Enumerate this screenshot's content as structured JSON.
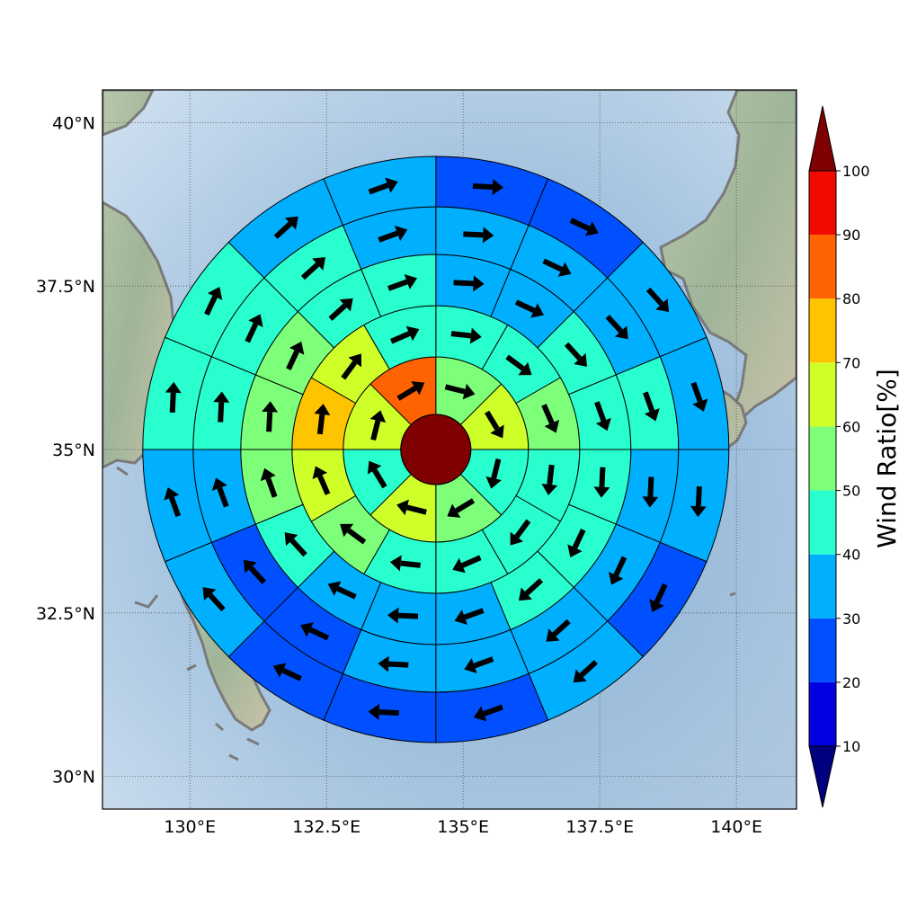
{
  "chart_data": {
    "type": "polar-grid-map",
    "x_axis": {
      "ticks": [
        {
          "lon": 130.0,
          "label": "130°E"
        },
        {
          "lon": 132.5,
          "label": "132.5°E"
        },
        {
          "lon": 135.0,
          "label": "135°E"
        },
        {
          "lon": 137.5,
          "label": "137.5°E"
        },
        {
          "lon": 140.0,
          "label": "140°E"
        }
      ],
      "range": [
        128.4,
        141.1
      ]
    },
    "y_axis": {
      "ticks": [
        {
          "lat": 30.0,
          "label": "30°N"
        },
        {
          "lat": 32.5,
          "label": "32.5°N"
        },
        {
          "lat": 35.0,
          "label": "35°N"
        },
        {
          "lat": 37.5,
          "label": "37.5°N"
        },
        {
          "lat": 40.0,
          "label": "40°N"
        }
      ],
      "range": [
        29.5,
        40.5
      ]
    },
    "grid": true,
    "center": {
      "lon": 134.5,
      "lat": 35.0,
      "value": 100
    },
    "rings": [
      {
        "sectors": 8,
        "values": [
          55,
          65,
          45,
          55,
          65,
          45,
          65,
          85
        ]
      },
      {
        "sectors": 12,
        "values": [
          45,
          45,
          55,
          45,
          45,
          45,
          45,
          55,
          65,
          75,
          65,
          45
        ]
      },
      {
        "sectors": 16,
        "values": [
          35,
          35,
          45,
          45,
          45,
          45,
          45,
          35,
          35,
          35,
          45,
          55,
          55,
          55,
          45,
          45
        ]
      },
      {
        "sectors": 16,
        "values": [
          35,
          35,
          35,
          45,
          35,
          35,
          35,
          35,
          35,
          25,
          25,
          35,
          45,
          45,
          45,
          35
        ]
      },
      {
        "sectors": 16,
        "values": [
          25,
          25,
          35,
          35,
          35,
          25,
          35,
          25,
          25,
          25,
          35,
          35,
          45,
          45,
          35,
          35
        ]
      }
    ],
    "colorbar": {
      "label": "Wind Ratio[%]",
      "ticks": [
        10,
        20,
        30,
        40,
        50,
        60,
        70,
        80,
        90,
        100
      ],
      "levels": [
        0,
        10,
        20,
        30,
        40,
        50,
        60,
        70,
        80,
        90,
        100
      ],
      "colors": [
        "#00007f",
        "#0000e0",
        "#0050ff",
        "#00b0ff",
        "#29ffce",
        "#7dff7a",
        "#ceff29",
        "#ffc400",
        "#ff6200",
        "#f00a00",
        "#7f0000"
      ],
      "extend": "both"
    },
    "land_regions": [
      "Korea",
      "Japan (Honshu)",
      "Japan (Kyushu)",
      "Japan (Shikoku)"
    ]
  }
}
